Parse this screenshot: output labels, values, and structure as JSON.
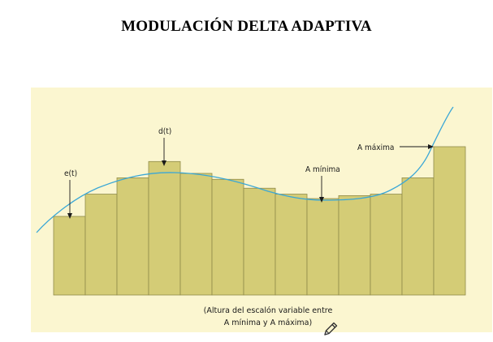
{
  "title": "MODULACIÓN DELTA ADAPTIVA",
  "labels": {
    "e_t": "e(t)",
    "d_t": "d(t)",
    "a_minima": "A mínima",
    "a_maxima": "A máxima"
  },
  "caption": {
    "line1": "(Altura del escalón variable entre",
    "line2": "A mínima y A máxima)"
  },
  "colors": {
    "panel_background": "#fbf6d0",
    "bar_fill": "#d4cc76",
    "bar_stroke": "#8f8a4a",
    "signal_curve": "#3aa7d6"
  },
  "steps": {
    "count": 13,
    "relative_heights": [
      0.53,
      0.68,
      0.79,
      0.9,
      0.82,
      0.78,
      0.72,
      0.68,
      0.65,
      0.67,
      0.68,
      0.79,
      1.0
    ]
  },
  "icons": {
    "pencil": "pencil-icon"
  }
}
